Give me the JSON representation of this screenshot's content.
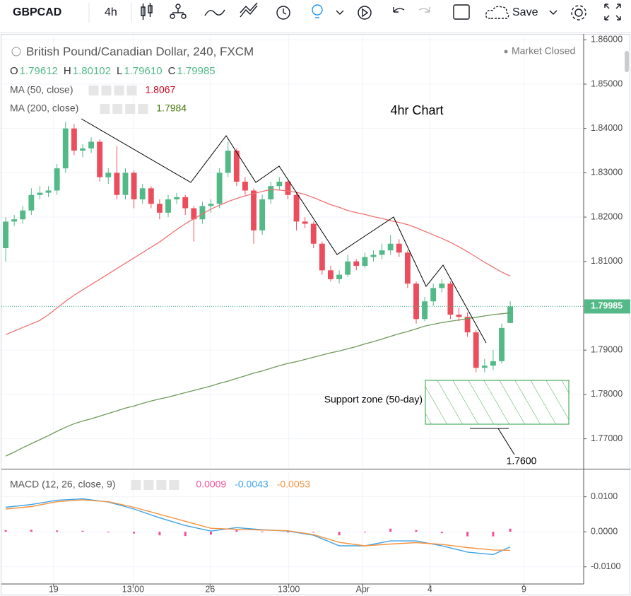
{
  "toolbar": {
    "symbol": "GBPCAD",
    "interval": "4h",
    "save": "Save"
  },
  "chart_data": [
    {
      "type": "candlestick",
      "title": "British Pound/Canadian Dollar, 240, FXCM",
      "status": "Market Closed",
      "ohlc_legend": [
        {
          "key": "O",
          "label": "1.79612"
        },
        {
          "key": "H",
          "label": "1.80102"
        },
        {
          "key": "L",
          "label": "1.79610"
        },
        {
          "key": "C",
          "label": "1.79985"
        }
      ],
      "annotations": [
        "4hr Chart",
        "Support zone (50-day)",
        "1.7600"
      ],
      "up_color": "#53b987",
      "down_color": "#eb4d5c",
      "candles": [
        {
          "o": 1.813,
          "h": 1.82,
          "l": 1.81,
          "c": 1.819
        },
        {
          "o": 1.819,
          "h": 1.8205,
          "l": 1.818,
          "c": 1.8195
        },
        {
          "o": 1.8195,
          "h": 1.8225,
          "l": 1.8185,
          "c": 1.8215
        },
        {
          "o": 1.8215,
          "h": 1.8265,
          "l": 1.8205,
          "c": 1.825
        },
        {
          "o": 1.825,
          "h": 1.827,
          "l": 1.824,
          "c": 1.8255
        },
        {
          "o": 1.8255,
          "h": 1.827,
          "l": 1.8245,
          "c": 1.826
        },
        {
          "o": 1.826,
          "h": 1.832,
          "l": 1.825,
          "c": 1.831
        },
        {
          "o": 1.831,
          "h": 1.8415,
          "l": 1.83,
          "c": 1.84
        },
        {
          "o": 1.84,
          "h": 1.841,
          "l": 1.834,
          "c": 1.835
        },
        {
          "o": 1.835,
          "h": 1.8365,
          "l": 1.8335,
          "c": 1.8355
        },
        {
          "o": 1.8355,
          "h": 1.838,
          "l": 1.8345,
          "c": 1.837
        },
        {
          "o": 1.837,
          "h": 1.8375,
          "l": 1.828,
          "c": 1.829
        },
        {
          "o": 1.829,
          "h": 1.831,
          "l": 1.8275,
          "c": 1.83
        },
        {
          "o": 1.83,
          "h": 1.836,
          "l": 1.824,
          "c": 1.825
        },
        {
          "o": 1.825,
          "h": 1.831,
          "l": 1.824,
          "c": 1.83
        },
        {
          "o": 1.83,
          "h": 1.8305,
          "l": 1.822,
          "c": 1.824
        },
        {
          "o": 1.824,
          "h": 1.8275,
          "l": 1.823,
          "c": 1.8265
        },
        {
          "o": 1.8265,
          "h": 1.827,
          "l": 1.822,
          "c": 1.823
        },
        {
          "o": 1.823,
          "h": 1.824,
          "l": 1.8195,
          "c": 1.821
        },
        {
          "o": 1.821,
          "h": 1.825,
          "l": 1.82,
          "c": 1.824
        },
        {
          "o": 1.824,
          "h": 1.8255,
          "l": 1.823,
          "c": 1.8245
        },
        {
          "o": 1.8245,
          "h": 1.825,
          "l": 1.8205,
          "c": 1.822
        },
        {
          "o": 1.822,
          "h": 1.8225,
          "l": 1.8145,
          "c": 1.8195
        },
        {
          "o": 1.8195,
          "h": 1.8235,
          "l": 1.8185,
          "c": 1.8225
        },
        {
          "o": 1.8225,
          "h": 1.824,
          "l": 1.821,
          "c": 1.823
        },
        {
          "o": 1.823,
          "h": 1.831,
          "l": 1.822,
          "c": 1.83
        },
        {
          "o": 1.83,
          "h": 1.837,
          "l": 1.829,
          "c": 1.835
        },
        {
          "o": 1.835,
          "h": 1.8355,
          "l": 1.827,
          "c": 1.828
        },
        {
          "o": 1.828,
          "h": 1.829,
          "l": 1.825,
          "c": 1.826
        },
        {
          "o": 1.826,
          "h": 1.8265,
          "l": 1.814,
          "c": 1.817
        },
        {
          "o": 1.817,
          "h": 1.825,
          "l": 1.816,
          "c": 1.824
        },
        {
          "o": 1.824,
          "h": 1.828,
          "l": 1.823,
          "c": 1.827
        },
        {
          "o": 1.827,
          "h": 1.829,
          "l": 1.826,
          "c": 1.828
        },
        {
          "o": 1.828,
          "h": 1.8285,
          "l": 1.824,
          "c": 1.825
        },
        {
          "o": 1.825,
          "h": 1.8255,
          "l": 1.817,
          "c": 1.819
        },
        {
          "o": 1.819,
          "h": 1.82,
          "l": 1.8175,
          "c": 1.8185
        },
        {
          "o": 1.8185,
          "h": 1.819,
          "l": 1.813,
          "c": 1.814
        },
        {
          "o": 1.814,
          "h": 1.8145,
          "l": 1.807,
          "c": 1.808
        },
        {
          "o": 1.808,
          "h": 1.809,
          "l": 1.8055,
          "c": 1.806
        },
        {
          "o": 1.806,
          "h": 1.808,
          "l": 1.805,
          "c": 1.807
        },
        {
          "o": 1.807,
          "h": 1.8115,
          "l": 1.8065,
          "c": 1.81
        },
        {
          "o": 1.81,
          "h": 1.8105,
          "l": 1.808,
          "c": 1.809
        },
        {
          "o": 1.809,
          "h": 1.812,
          "l": 1.8085,
          "c": 1.811
        },
        {
          "o": 1.811,
          "h": 1.8125,
          "l": 1.81,
          "c": 1.8115
        },
        {
          "o": 1.8115,
          "h": 1.814,
          "l": 1.8105,
          "c": 1.8125
        },
        {
          "o": 1.8125,
          "h": 1.816,
          "l": 1.8115,
          "c": 1.814
        },
        {
          "o": 1.814,
          "h": 1.815,
          "l": 1.811,
          "c": 1.812
        },
        {
          "o": 1.812,
          "h": 1.8125,
          "l": 1.804,
          "c": 1.805
        },
        {
          "o": 1.805,
          "h": 1.8055,
          "l": 1.796,
          "c": 1.797
        },
        {
          "o": 1.797,
          "h": 1.802,
          "l": 1.7965,
          "c": 1.801
        },
        {
          "o": 1.801,
          "h": 1.805,
          "l": 1.8,
          "c": 1.804
        },
        {
          "o": 1.804,
          "h": 1.806,
          "l": 1.803,
          "c": 1.805
        },
        {
          "o": 1.805,
          "h": 1.8055,
          "l": 1.797,
          "c": 1.798
        },
        {
          "o": 1.798,
          "h": 1.7995,
          "l": 1.7965,
          "c": 1.7975
        },
        {
          "o": 1.7975,
          "h": 1.7985,
          "l": 1.793,
          "c": 1.794
        },
        {
          "o": 1.794,
          "h": 1.7945,
          "l": 1.785,
          "c": 1.786
        },
        {
          "o": 1.786,
          "h": 1.788,
          "l": 1.785,
          "c": 1.7865
        },
        {
          "o": 1.7865,
          "h": 1.79,
          "l": 1.7855,
          "c": 1.7875
        },
        {
          "o": 1.7875,
          "h": 1.796,
          "l": 1.787,
          "c": 1.795
        },
        {
          "o": 1.79612,
          "h": 1.80102,
          "l": 1.7961,
          "c": 1.79985
        }
      ],
      "series": [
        {
          "name": "MA (50, close)",
          "color": "#f07070",
          "values": [
            1.7935,
            1.7943,
            1.7951,
            1.7959,
            1.7967,
            1.798,
            1.7995,
            1.801,
            1.8024,
            1.8036,
            1.8048,
            1.806,
            1.8072,
            1.8084,
            1.8096,
            1.8108,
            1.812,
            1.8132,
            1.8144,
            1.8158,
            1.8172,
            1.8185,
            1.8196,
            1.8207,
            1.8218,
            1.8227,
            1.8235,
            1.8242,
            1.8248,
            1.8253,
            1.8258,
            1.8262,
            1.8261,
            1.8259,
            1.8256,
            1.8251,
            1.8244,
            1.8236,
            1.8228,
            1.8222,
            1.8215,
            1.821,
            1.8206,
            1.8201,
            1.8197,
            1.8192,
            1.8188,
            1.8183,
            1.8176,
            1.8168,
            1.816,
            1.8152,
            1.8143,
            1.8133,
            1.8122,
            1.811,
            1.8098,
            1.8087,
            1.8076,
            1.8067
          ],
          "value_color": "#d0021b"
        },
        {
          "name": "MA (200, close)",
          "color": "#6f9a5a",
          "values": [
            1.7661,
            1.767,
            1.768,
            1.7689,
            1.7698,
            1.7707,
            1.7717,
            1.7726,
            1.7734,
            1.774,
            1.7745,
            1.7751,
            1.7757,
            1.7763,
            1.7769,
            1.7774,
            1.778,
            1.7785,
            1.779,
            1.7794,
            1.7799,
            1.7804,
            1.7809,
            1.7814,
            1.7819,
            1.7825,
            1.783,
            1.7836,
            1.7842,
            1.7848,
            1.7853,
            1.7859,
            1.7865,
            1.787,
            1.7874,
            1.7879,
            1.7884,
            1.7889,
            1.7894,
            1.7898,
            1.7903,
            1.7908,
            1.7914,
            1.7919,
            1.7925,
            1.7931,
            1.7937,
            1.7942,
            1.7948,
            1.7954,
            1.7958,
            1.7962,
            1.7965,
            1.7968,
            1.7971,
            1.7974,
            1.7977,
            1.798,
            1.7982,
            1.7984
          ],
          "value_color": "#417505"
        }
      ],
      "xlim": [
        -0.5,
        67.5
      ],
      "xticks": [
        {
          "value": 5.6,
          "label": "19"
        },
        {
          "value": 14.9,
          "label": "13:00"
        },
        {
          "value": 23.9,
          "label": "26"
        },
        {
          "value": 33.1,
          "label": "13:00"
        },
        {
          "value": 41.75,
          "label": "Apr"
        },
        {
          "value": 49.6,
          "label": "4"
        },
        {
          "value": 60.6,
          "label": "9"
        }
      ],
      "ylim": [
        1.7634,
        1.861
      ],
      "yticks": [
        {
          "value": 1.77,
          "label": "1.77000"
        },
        {
          "value": 1.78,
          "label": "1.78000"
        },
        {
          "value": 1.79,
          "label": "1.79000"
        },
        {
          "value": 1.8,
          "label": "1.80000"
        },
        {
          "value": 1.81,
          "label": "1.81000"
        },
        {
          "value": 1.82,
          "label": "1.82000"
        },
        {
          "value": 1.83,
          "label": "1.83000"
        },
        {
          "value": 1.84,
          "label": "1.84000"
        },
        {
          "value": 1.85,
          "label": "1.85000"
        },
        {
          "value": 1.86,
          "label": "1.86000"
        }
      ],
      "grid": true
    },
    {
      "type": "line",
      "title": "MACD (12, 26, close, 9)",
      "x": [
        0,
        3,
        6,
        9,
        12,
        15,
        18,
        21,
        24,
        27,
        30,
        33,
        36,
        39,
        42,
        45,
        48,
        51,
        54,
        57,
        59
      ],
      "series": [
        {
          "type": "bar",
          "color": "#f0509a",
          "values": [
            0.0005,
            0.0006,
            0.0004,
            0.0003,
            -0.0001,
            -0.0005,
            -0.001,
            -0.0012,
            -0.0008,
            0.0005,
            0.0001,
            -0.0001,
            -0.0002,
            -0.001,
            0.0,
            0.0009,
            0.0005,
            -0.0004,
            -0.0013,
            -0.0013,
            0.0009
          ]
        },
        {
          "type": "line",
          "color": "#3ea3e8",
          "values": [
            0.007,
            0.0078,
            0.009,
            0.0094,
            0.0085,
            0.0065,
            0.004,
            0.0018,
            0.0002,
            0.0012,
            0.0006,
            0.0002,
            -0.001,
            -0.004,
            -0.004,
            -0.0026,
            -0.0026,
            -0.004,
            -0.0058,
            -0.0065,
            -0.0043
          ]
        },
        {
          "type": "line",
          "color": "#f5923e",
          "values": [
            0.0065,
            0.0072,
            0.0086,
            0.0091,
            0.0086,
            0.007,
            0.005,
            0.003,
            0.001,
            0.0007,
            0.0005,
            0.0003,
            -0.0008,
            -0.003,
            -0.004,
            -0.0035,
            -0.0031,
            -0.0036,
            -0.0045,
            -0.0052,
            -0.0053
          ]
        }
      ],
      "xlim": [
        -0.5,
        67.5
      ],
      "ylim": [
        -0.0147,
        0.017
      ],
      "yticks": [
        {
          "value": 0.01,
          "label": "0.0100"
        },
        {
          "value": 0,
          "label": "0.0000"
        },
        {
          "value": -0.01,
          "label": "-0.0100"
        }
      ],
      "grid": true
    }
  ]
}
